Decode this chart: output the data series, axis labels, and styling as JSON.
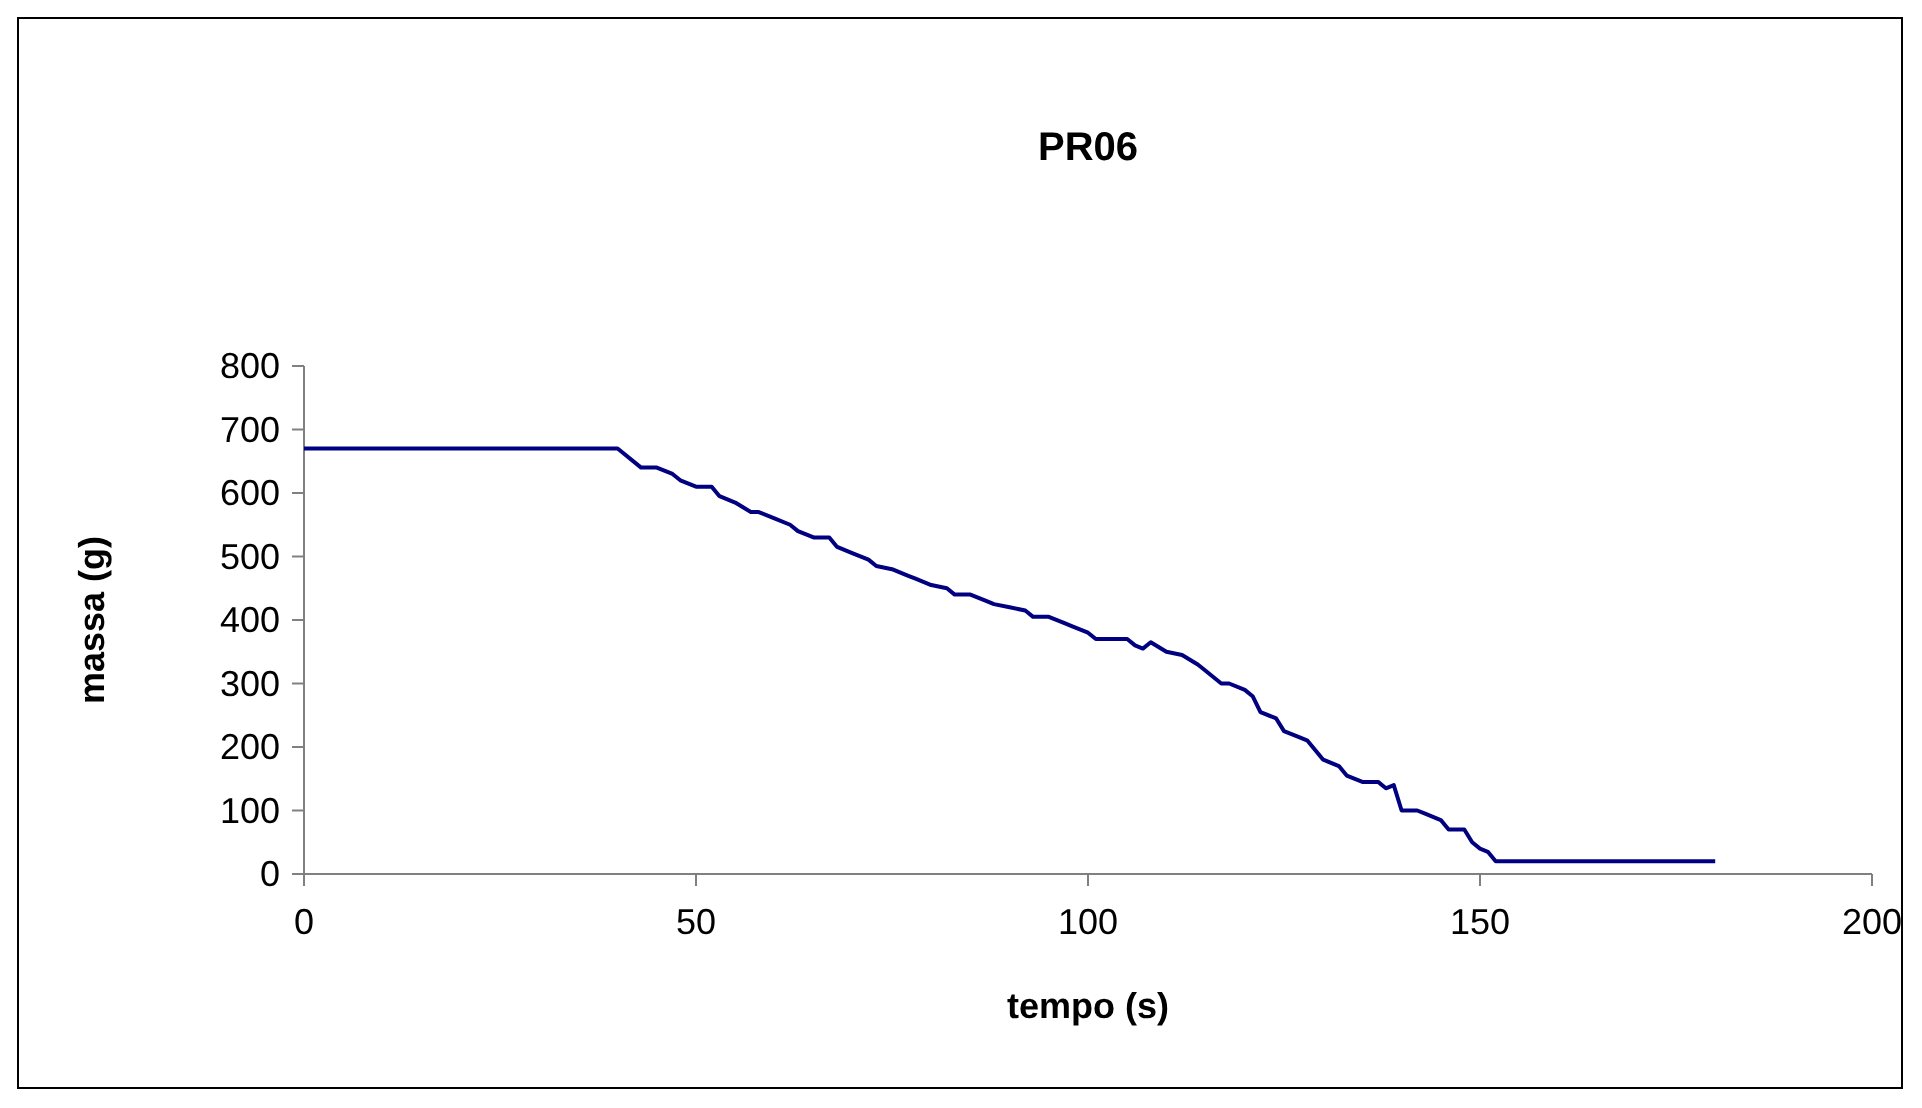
{
  "chart_data": {
    "type": "line",
    "title": "PR06",
    "xlabel": "tempo (s)",
    "ylabel": "massa (g)",
    "xlim": [
      0,
      200
    ],
    "xticks": [
      0,
      50,
      100,
      150,
      200
    ],
    "ylim": [
      0,
      800
    ],
    "yticks": [
      0,
      100,
      200,
      300,
      400,
      500,
      600,
      700,
      800
    ],
    "grid": false,
    "marker": "none",
    "line_style": "solid",
    "series": [
      {
        "color": "#000080",
        "x": [
          0,
          40,
          43,
          45,
          47,
          48,
          50,
          52,
          53,
          55,
          57,
          58,
          60,
          62,
          63,
          65,
          67,
          68,
          70,
          72,
          73,
          75,
          77,
          78,
          80,
          82,
          83,
          85,
          87,
          88,
          90,
          92,
          93,
          95,
          97,
          98,
          100,
          101,
          103,
          105,
          106,
          107,
          108,
          110,
          112,
          114,
          115,
          117,
          118,
          120,
          121,
          122,
          124,
          125,
          127,
          128,
          130,
          132,
          133,
          135,
          137,
          138,
          139,
          140,
          142,
          143,
          145,
          146,
          148,
          149,
          150,
          151,
          152,
          160,
          170,
          180
        ],
        "values": [
          670,
          670,
          640,
          640,
          630,
          620,
          610,
          610,
          595,
          585,
          570,
          570,
          560,
          550,
          540,
          530,
          530,
          515,
          505,
          495,
          485,
          480,
          470,
          465,
          455,
          450,
          440,
          440,
          430,
          425,
          420,
          415,
          405,
          405,
          395,
          390,
          380,
          370,
          370,
          370,
          360,
          355,
          365,
          350,
          345,
          330,
          320,
          300,
          300,
          290,
          280,
          255,
          245,
          225,
          215,
          210,
          180,
          170,
          155,
          145,
          145,
          135,
          140,
          100,
          100,
          95,
          85,
          70,
          70,
          50,
          40,
          35,
          20,
          20,
          20,
          20
        ]
      }
    ]
  }
}
